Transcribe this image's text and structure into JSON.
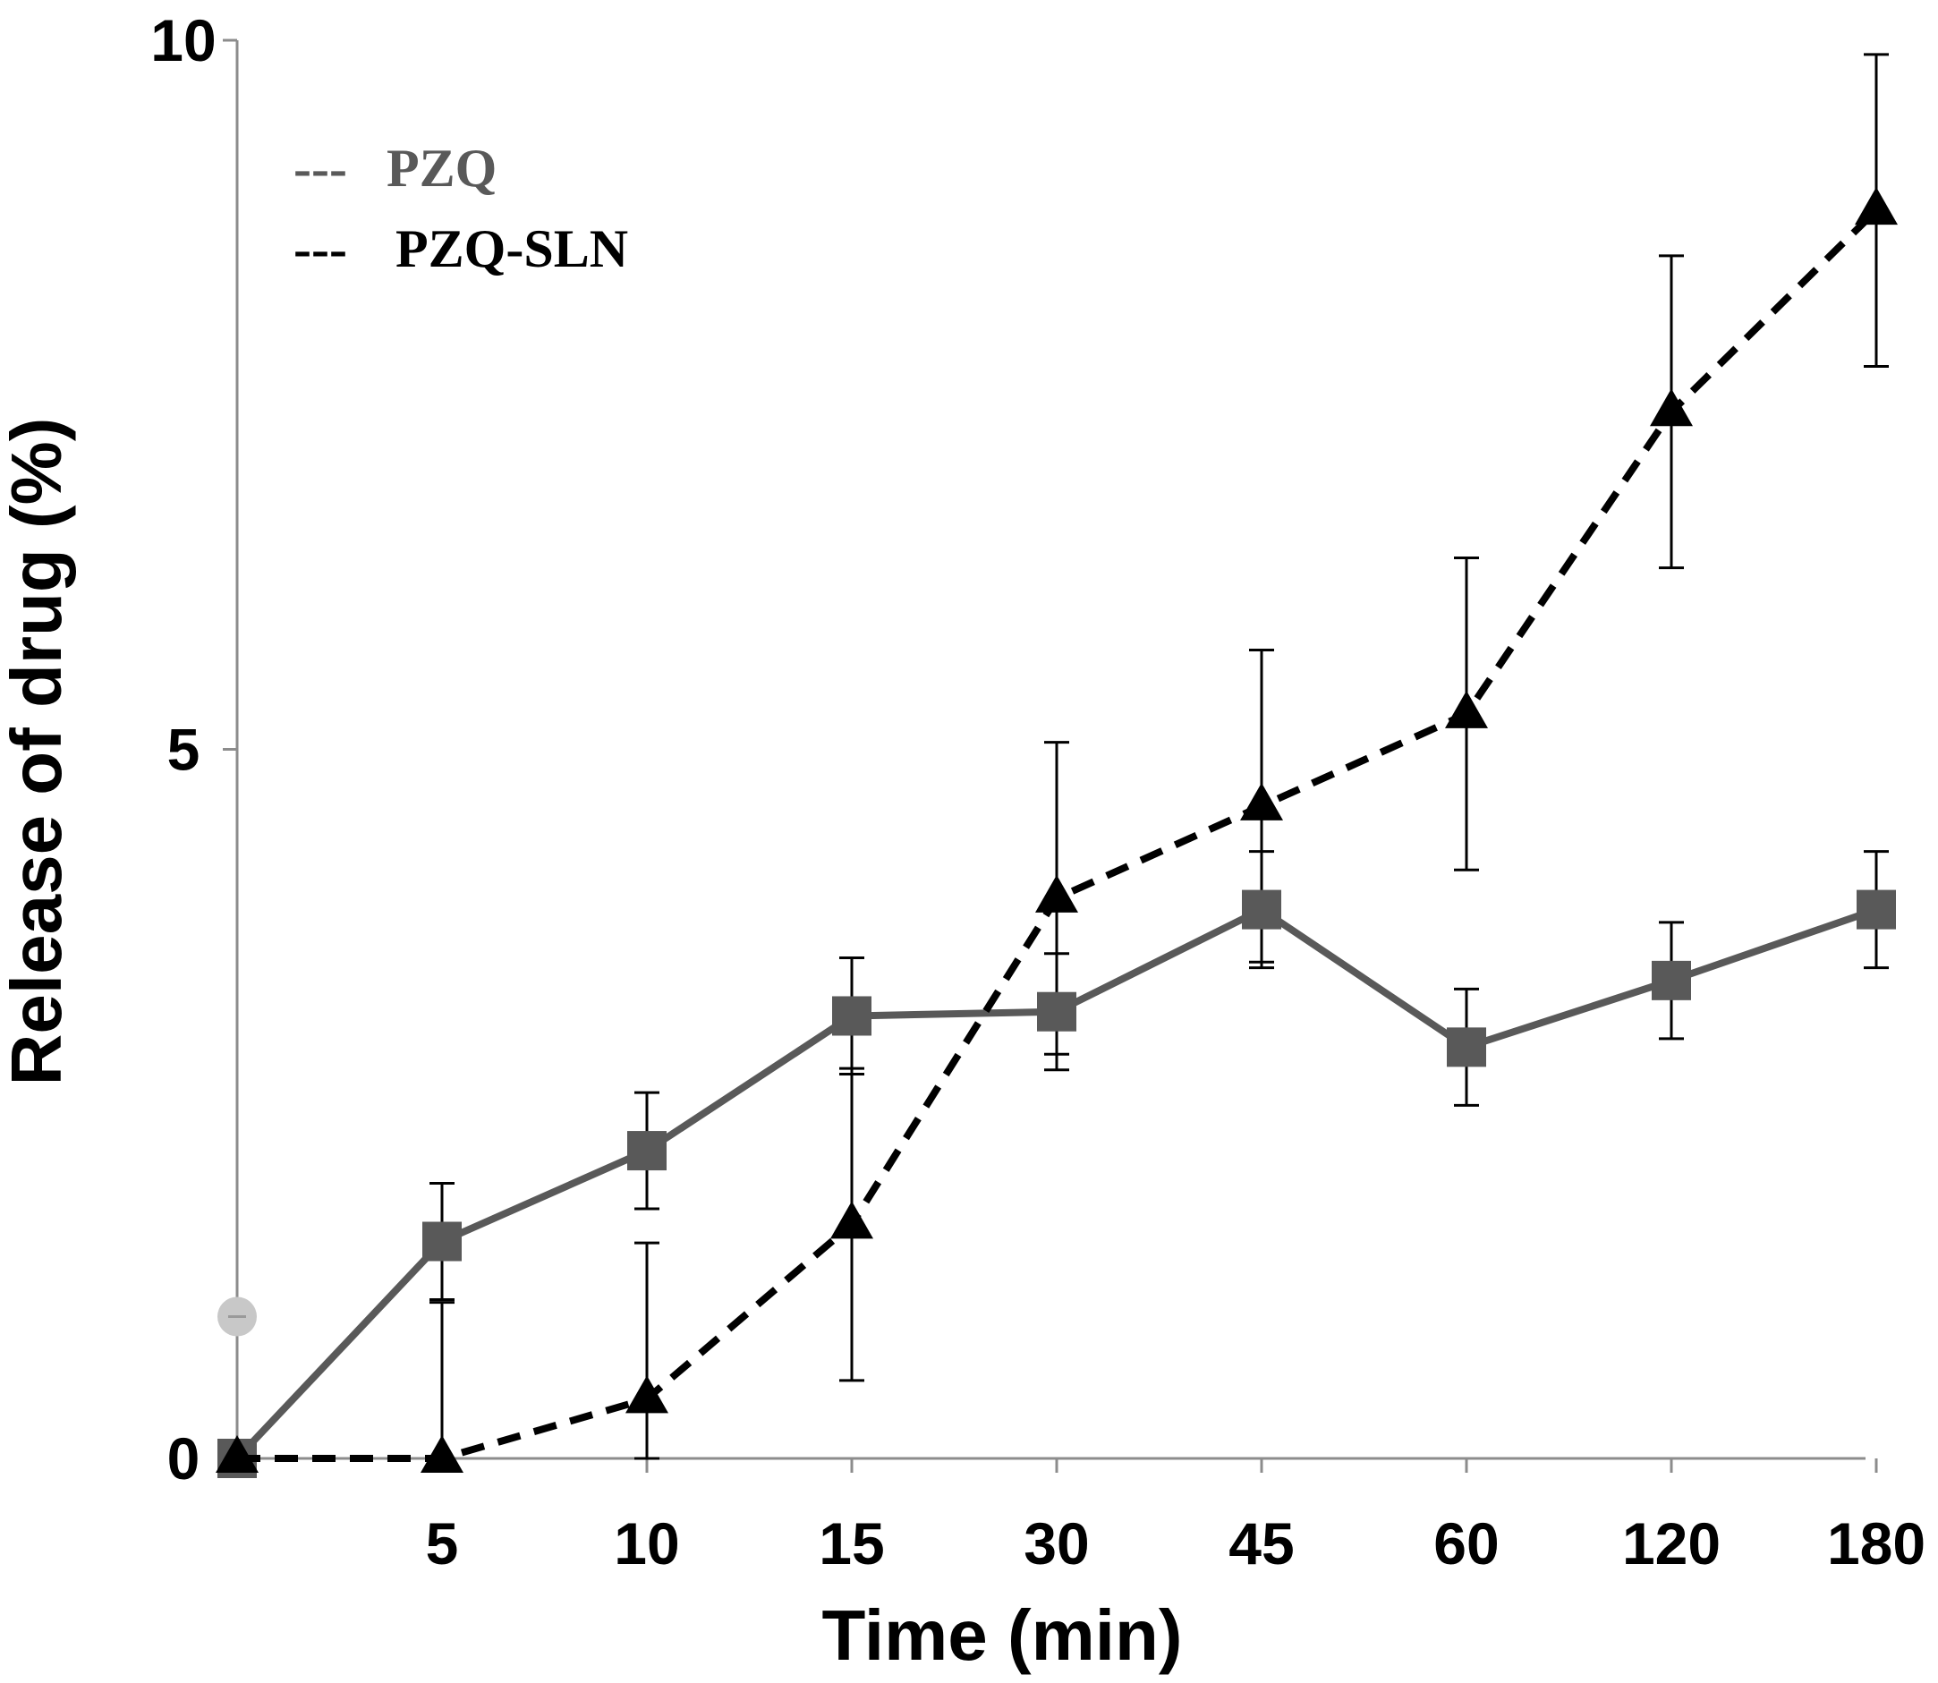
{
  "chart_data": {
    "type": "line",
    "title": "",
    "xlabel": "Time (min)",
    "ylabel": "Release of drug (%)",
    "categories": [
      "0",
      "5",
      "10",
      "15",
      "30",
      "45",
      "60",
      "120",
      "180"
    ],
    "x_tick_labels": [
      "5",
      "10",
      "15",
      "30",
      "45",
      "60",
      "120",
      "180"
    ],
    "y_ticks": [
      "0",
      "5",
      "10"
    ],
    "ylim": [
      0,
      10
    ],
    "grid": false,
    "legend_position": "top-left",
    "series": [
      {
        "name": "PZQ",
        "legend_label": "PZQ",
        "legend_line": "---",
        "marker": "square",
        "line_style": "solid",
        "color": "#595959",
        "values": [
          0.0,
          1.53,
          2.17,
          3.12,
          3.15,
          3.87,
          2.9,
          3.37,
          3.87
        ],
        "errors": [
          0.0,
          0.41,
          0.41,
          0.41,
          0.41,
          0.41,
          0.41,
          0.41,
          0.41
        ]
      },
      {
        "name": "PZQ-SLN",
        "legend_label": "PZQ-SLN",
        "legend_line": "---",
        "marker": "triangle",
        "line_style": "dashed",
        "color": "#000000",
        "values": [
          0.0,
          0.0,
          0.42,
          1.65,
          3.95,
          4.6,
          5.25,
          7.38,
          8.8
        ],
        "errors": [
          0.0,
          1.1,
          1.1,
          1.1,
          1.1,
          1.1,
          1.1,
          1.1,
          1.1
        ]
      }
    ],
    "annotations": [
      {
        "type": "marker",
        "shape": "circle",
        "x": "0",
        "y": 1.0,
        "color": "#c8c8c8"
      }
    ]
  }
}
